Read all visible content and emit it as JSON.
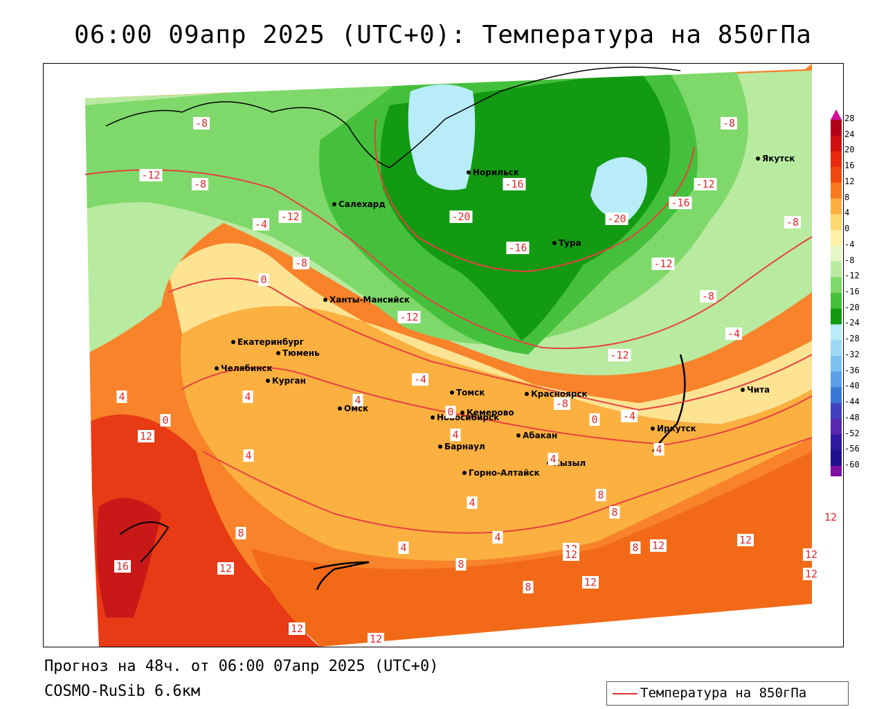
{
  "header": {
    "title": "06:00 09апр 2025 (UTC+0): Температура на 850гПа"
  },
  "footer": {
    "forecast": "Прогноз на 48ч. от 06:00 07апр 2025 (UTC+0)",
    "model": "COSMO-RuSib 6.6км"
  },
  "legend": {
    "label": "Температура на 850гПа",
    "line_color": "#e0302e"
  },
  "colorbar": {
    "ticks": [
      "28",
      "24",
      "20",
      "16",
      "12",
      "8",
      "4",
      "0",
      "-4",
      "-8",
      "-12",
      "-16",
      "-20",
      "-24",
      "-28",
      "-32",
      "-36",
      "-40",
      "-44",
      "-48",
      "-52",
      "-56",
      "-60"
    ],
    "colors": [
      "#b0001a",
      "#d01010",
      "#e82a10",
      "#f04a10",
      "#f87a20",
      "#fbb040",
      "#fcd870",
      "#fff0a8",
      "#e6f7c8",
      "#b8eaa0",
      "#7fd86a",
      "#45c03c",
      "#129a12",
      "#b8ecf8",
      "#9cd8f4",
      "#7cc0f0",
      "#5aa0e8",
      "#3a78d8",
      "#4040c0",
      "#5a28b0",
      "#3018a0",
      "#201090",
      "#8010a0"
    ]
  },
  "cities": [
    {
      "name": "Норильск"
    },
    {
      "name": "Салехард"
    },
    {
      "name": "Тура"
    },
    {
      "name": "Якутск"
    },
    {
      "name": "Ханты-Мансийск"
    },
    {
      "name": "Екатеринбург"
    },
    {
      "name": "Тюмень"
    },
    {
      "name": "Челябинск"
    },
    {
      "name": "Курган"
    },
    {
      "name": "Омск"
    },
    {
      "name": "Новосибирск"
    },
    {
      "name": "Томск"
    },
    {
      "name": "Кемерово"
    },
    {
      "name": "Красноярск"
    },
    {
      "name": "Барнаул"
    },
    {
      "name": "Абакан"
    },
    {
      "name": "Горно-Алтайск"
    },
    {
      "name": "Кызыл"
    },
    {
      "name": "Иркутск"
    },
    {
      "name": "Чита"
    }
  ],
  "isotherm_labels": [
    "-8",
    "-12",
    "-8",
    "-4",
    "-12",
    "-8",
    "0",
    "-12",
    "-16",
    "-20",
    "-16",
    "-20",
    "-16",
    "-12",
    "-12",
    "-8",
    "-8",
    "-12",
    "-4",
    "-8",
    "4",
    "0",
    "4",
    "4",
    "0",
    "4",
    "-4",
    "-8",
    "0",
    "-4",
    "4",
    "12",
    "4",
    "8",
    "4",
    "12",
    "16",
    "8",
    "4",
    "4",
    "8",
    "8",
    "12",
    "12",
    "8",
    "12",
    "8",
    "12",
    "12",
    "12",
    "12",
    "12",
    "12",
    "12",
    "4"
  ]
}
